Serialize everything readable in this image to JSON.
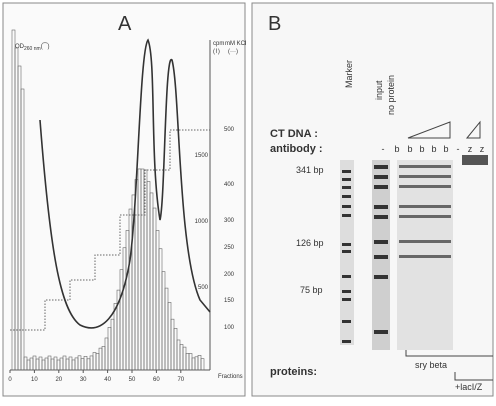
{
  "panel_a": {
    "label": "A",
    "od_label": "OD",
    "od_sub": "260 nm",
    "od_symbol": "(⁀)",
    "cpm_label": "cpm",
    "cpm_symbol": "(⌇)",
    "kcl_label": "mM KCl",
    "kcl_symbol": "(···)",
    "x_ticks": [
      "0",
      "10",
      "20",
      "30",
      "40",
      "50",
      "60",
      "70"
    ],
    "x_label": "Fractions",
    "cpm_ticks": [
      "1500",
      "1000",
      "500"
    ],
    "kcl_ticks": [
      "500",
      "400",
      "300",
      "250",
      "200",
      "150",
      "100"
    ]
  },
  "panel_b": {
    "label": "B",
    "marker": "Marker",
    "input": "input",
    "no_protein": "no protein",
    "ct_dna": "CT DNA :",
    "antibody": "antibody :",
    "lanes": [
      "-",
      "b",
      "b",
      "b",
      "b",
      "b",
      "-",
      "z",
      "z"
    ],
    "sizes": [
      "341 bp",
      "126 bp",
      "75 bp"
    ],
    "proteins": "proteins:",
    "sry_beta": "sry beta",
    "lacz": "+lacI/Z"
  }
}
